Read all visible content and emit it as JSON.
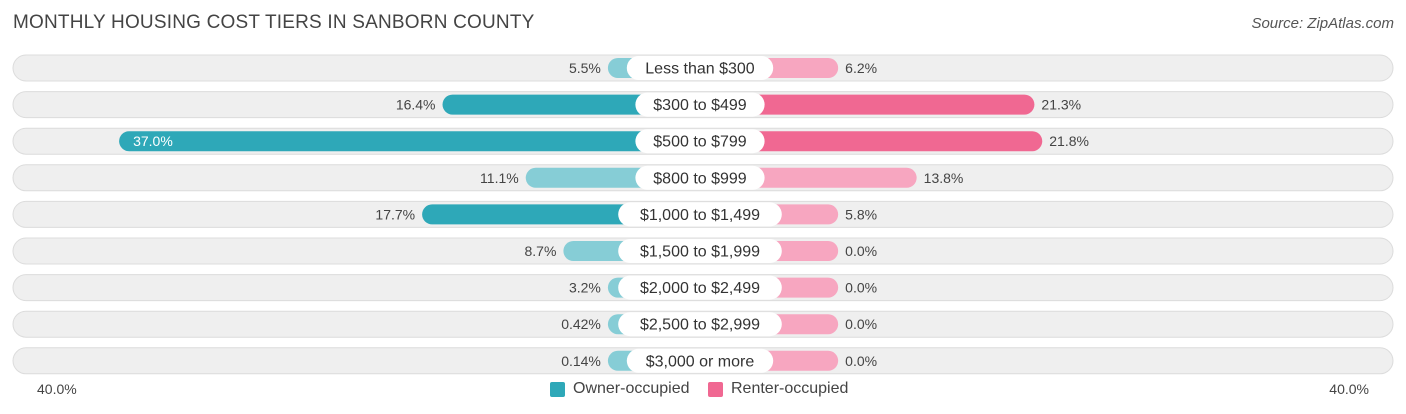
{
  "header": {
    "title": "MONTHLY HOUSING COST TIERS IN SANBORN COUNTY",
    "source": "Source: ZipAtlas.com"
  },
  "colors": {
    "owner_dark": "#2ea8b8",
    "owner_light": "#86cdd6",
    "renter_dark": "#f06892",
    "renter_light": "#f7a6c0",
    "row_bg": "#efefef",
    "row_border": "#dcdcdc"
  },
  "axis": {
    "left_label": "40.0%",
    "right_label": "40.0%"
  },
  "legend": {
    "owner_label": "Owner-occupied",
    "renter_label": "Renter-occupied"
  },
  "chart_data": {
    "type": "bar",
    "title": "MONTHLY HOUSING COST TIERS IN SANBORN COUNTY",
    "orientation": "horizontal-diverging",
    "xlim": [
      -40,
      40
    ],
    "categories": [
      "Less than $300",
      "$300 to $499",
      "$500 to $799",
      "$800 to $999",
      "$1,000 to $1,499",
      "$1,500 to $1,999",
      "$2,000 to $2,499",
      "$2,500 to $2,999",
      "$3,000 or more"
    ],
    "series": [
      {
        "name": "Owner-occupied",
        "values": [
          5.5,
          16.4,
          37.0,
          11.1,
          17.7,
          8.7,
          3.2,
          0.42,
          0.14
        ],
        "labels": [
          "5.5%",
          "16.4%",
          "37.0%",
          "11.1%",
          "17.7%",
          "8.7%",
          "3.2%",
          "0.42%",
          "0.14%"
        ]
      },
      {
        "name": "Renter-occupied",
        "values": [
          6.2,
          21.3,
          21.8,
          13.8,
          5.8,
          0.0,
          0.0,
          0.0,
          0.0
        ],
        "labels": [
          "6.2%",
          "21.3%",
          "21.8%",
          "13.8%",
          "5.8%",
          "0.0%",
          "0.0%",
          "0.0%",
          "0.0%"
        ]
      }
    ]
  }
}
